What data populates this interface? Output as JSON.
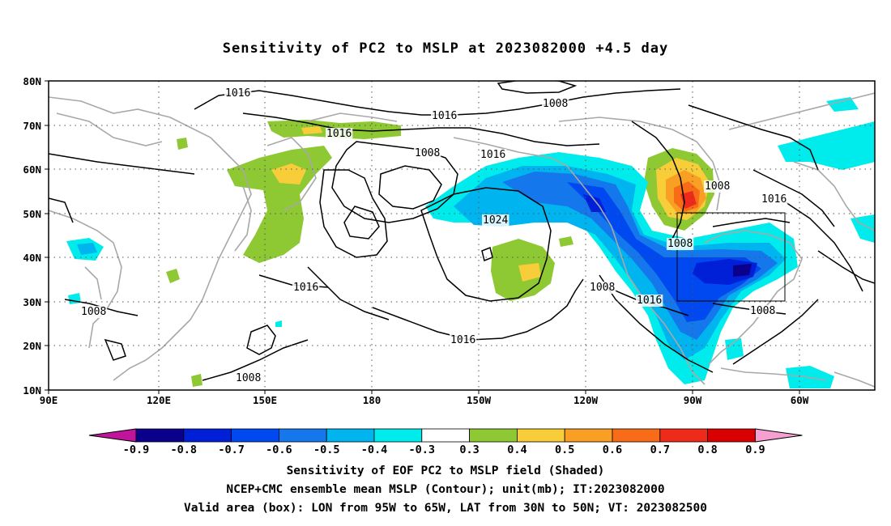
{
  "title": "Sensitivity of PC2 to MSLP at 2023082000 +4.5 day",
  "lat_labels": [
    "80N",
    "70N",
    "60N",
    "50N",
    "40N",
    "30N",
    "20N",
    "10N"
  ],
  "lon_labels": [
    "90E",
    "120E",
    "150E",
    "180",
    "150W",
    "120W",
    "90W",
    "60W"
  ],
  "contour_labels": [
    "1016",
    "1016",
    "1016",
    "1016",
    "1016",
    "1016",
    "1016",
    "1016",
    "1008",
    "1008",
    "1008",
    "1008",
    "1008",
    "1008",
    "1008",
    "1008",
    "1024"
  ],
  "colorbar": {
    "labels": [
      "-0.9",
      "-0.8",
      "-0.7",
      "-0.6",
      "-0.5",
      "-0.4",
      "-0.3",
      "0.3",
      "0.4",
      "0.5",
      "0.6",
      "0.7",
      "0.8",
      "0.9"
    ],
    "colors": [
      "#0b008c",
      "#0020d8",
      "#0048f0",
      "#1478ec",
      "#00b4f0",
      "#00ecec",
      "#ffffff",
      "#8ec832",
      "#f8cd3a",
      "#f89f24",
      "#f86c18",
      "#ee2a1a",
      "#d80000"
    ],
    "low_arrow_color": "#c0149a",
    "high_arrow_color": "#f5a0d0"
  },
  "captions": [
    "Sensitivity of EOF PC2 to MSLP field (Shaded)",
    "NCEP+CMC ensemble mean MSLP (Contour); unit(mb); IT:2023082000",
    "Valid area (box): LON from 95W to 65W, LAT from 30N to 50N; VT: 2023082500"
  ]
}
